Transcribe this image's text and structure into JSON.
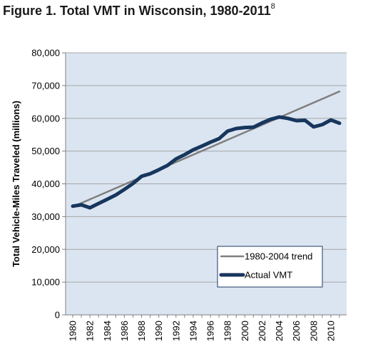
{
  "figure": {
    "title": "Figure 1. Total VMT in Wisconsin, 1980-2011",
    "title_superscript": "8"
  },
  "colors": {
    "plot_background": "#dbe5f1",
    "gridline": "#a6a6a6",
    "trend_line": "#7f7f7f",
    "actual_line": "#17365d"
  },
  "chart_data": {
    "type": "line",
    "title": "Figure 1. Total VMT in Wisconsin, 1980-2011",
    "xlabel": "",
    "ylabel": "Total Vehicle-Miles Traveled (millions)",
    "xlim": [
      1980,
      2011
    ],
    "ylim": [
      0,
      80000
    ],
    "x_ticks": [
      1980,
      1982,
      1984,
      1986,
      1988,
      1990,
      1992,
      1994,
      1996,
      1998,
      2000,
      2002,
      2004,
      2006,
      2008,
      2010
    ],
    "y_ticks": [
      0,
      10000,
      20000,
      30000,
      40000,
      50000,
      60000,
      70000,
      80000
    ],
    "y_tick_labels": [
      "0",
      "10,000",
      "20,000",
      "30,000",
      "40,000",
      "50,000",
      "60,000",
      "70,000",
      "80,000"
    ],
    "grid": true,
    "legend_position": "bottom-right",
    "series": [
      {
        "name": "1980-2004 trend",
        "color": "#7f7f7f",
        "x": [
          1980,
          2011
        ],
        "values": [
          33000,
          68200
        ]
      },
      {
        "name": "Actual VMT",
        "color": "#17365d",
        "x": [
          1980,
          1981,
          1982,
          1983,
          1984,
          1985,
          1986,
          1987,
          1988,
          1989,
          1990,
          1991,
          1992,
          1993,
          1994,
          1995,
          1996,
          1997,
          1998,
          1999,
          2000,
          2001,
          2002,
          2003,
          2004,
          2005,
          2006,
          2007,
          2008,
          2009,
          2010,
          2011
        ],
        "values": [
          33200,
          33600,
          32700,
          34000,
          35300,
          36600,
          38300,
          40100,
          42300,
          43100,
          44300,
          45600,
          47600,
          48900,
          50400,
          51500,
          52700,
          53800,
          56100,
          56900,
          57200,
          57300,
          58600,
          59700,
          60400,
          60000,
          59300,
          59400,
          57400,
          58100,
          59500,
          58500
        ]
      }
    ]
  }
}
